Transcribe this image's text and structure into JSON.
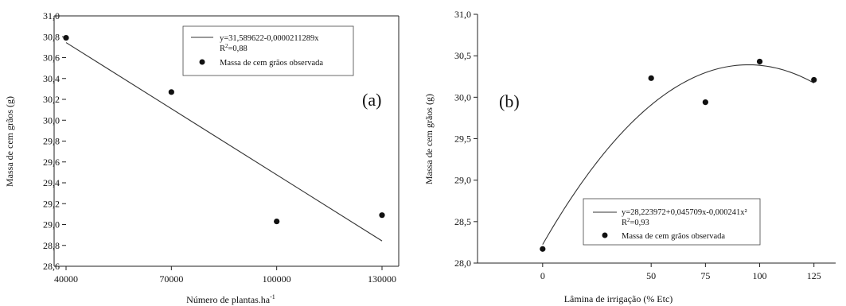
{
  "chart_data": [
    {
      "type": "scatter",
      "panel": "(a)",
      "xlabel": "Número de plantas.ha",
      "xlabel_sup": "-1",
      "ylabel": "Massa de cem grãos (g)",
      "xlim": [
        40000,
        130000
      ],
      "ylim": [
        28.6,
        31.0
      ],
      "xticks": [
        40000,
        70000,
        100000,
        130000
      ],
      "xtick_labels": [
        "40000",
        "70000",
        "100000",
        "130000"
      ],
      "yticks": [
        28.6,
        28.8,
        29.0,
        29.2,
        29.4,
        29.6,
        29.8,
        30.0,
        30.2,
        30.4,
        30.6,
        30.8,
        31.0
      ],
      "ytick_labels": [
        "28,6",
        "28,8",
        "29,0",
        "29,2",
        "29,4",
        "29,6",
        "29,8",
        "30,0",
        "30,2",
        "30,4",
        "30,6",
        "30,8",
        "31,0"
      ],
      "series": [
        {
          "name": "Massa de cem grãos observada",
          "kind": "points",
          "x": [
            40000,
            70000,
            100000,
            130000
          ],
          "y": [
            30.79,
            30.27,
            29.03,
            29.09
          ]
        },
        {
          "kind": "fit_linear",
          "intercept": 31.589622,
          "slope": -2.11289e-05
        }
      ],
      "legend": {
        "position": "top-right",
        "equation": "y=31,589622-0,0000211289x",
        "r2_prefix": "R",
        "r2_sup": "2",
        "r2_value": "=0,88",
        "points_label": "Massa de cem grãos observada"
      }
    },
    {
      "type": "scatter",
      "panel": "(b)",
      "xlabel": "Lâmina de irrigação (% Etc)",
      "ylabel": "Massa de cem grãos (g)",
      "xlim": [
        -30,
        135
      ],
      "ylim": [
        28.0,
        31.0
      ],
      "xticks": [
        0,
        50,
        75,
        100,
        125
      ],
      "xtick_labels": [
        "0",
        "50",
        "75",
        "100",
        "125"
      ],
      "yticks": [
        28.0,
        28.5,
        29.0,
        29.5,
        30.0,
        30.5,
        31.0
      ],
      "ytick_labels": [
        "28,0",
        "28,5",
        "29,0",
        "29,5",
        "30,0",
        "30,5",
        "31,0"
      ],
      "series": [
        {
          "name": "Massa de cem grãos observada",
          "kind": "points",
          "x": [
            0,
            50,
            75,
            100,
            125
          ],
          "y": [
            28.17,
            30.23,
            29.94,
            30.43,
            30.21
          ]
        },
        {
          "kind": "fit_quadratic",
          "a": 28.223972,
          "b": 0.045709,
          "c": -0.000241
        }
      ],
      "legend": {
        "position": "bottom-right",
        "equation": "y=28,223972+0,045709x-0,000241x²",
        "r2_prefix": "R",
        "r2_sup": "2",
        "r2_value": "=0,93",
        "points_label": "Massa de cem grãos observada"
      }
    }
  ]
}
